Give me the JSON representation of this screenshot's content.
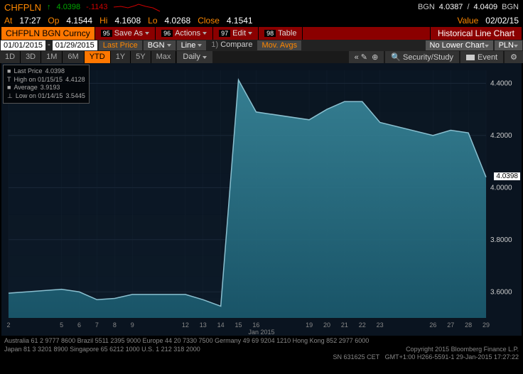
{
  "quote": {
    "symbol": "CHFPLN",
    "arrow": "↑",
    "last": "4.0398",
    "change": "-.1143",
    "bgn": "BGN",
    "bid": "4.0387",
    "ask": "4.0409"
  },
  "row2": {
    "at_lbl": "At",
    "at": "17:27",
    "op_lbl": "Op",
    "op": "4.1544",
    "hi_lbl": "Hi",
    "hi": "4.1608",
    "lo_lbl": "Lo",
    "lo": "4.0268",
    "close_lbl": "Close",
    "close": "4.1541",
    "value_lbl": "Value",
    "value": "02/02/15"
  },
  "row3": {
    "ticker": "CHFPLN BGN Curncy",
    "tabs": [
      {
        "n": "95",
        "t": "Save As"
      },
      {
        "n": "96",
        "t": "Actions"
      },
      {
        "n": "97",
        "t": "Edit"
      },
      {
        "n": "98",
        "t": "Table"
      }
    ],
    "title": "Historical Line Chart"
  },
  "row4": {
    "d1": "01/01/2015",
    "d2": "01/29/2015",
    "lp": "Last Price",
    "src": "BGN",
    "ct": "Line",
    "cmp": "Compare",
    "ma": "Mov. Avgs",
    "nlc": "No Lower Chart",
    "ccy": "PLN"
  },
  "row5": {
    "ranges": [
      "1D",
      "3D",
      "1M",
      "6M",
      "YTD",
      "1Y",
      "5Y",
      "Max"
    ],
    "active": "YTD",
    "freq": "Daily",
    "sec": "Security/Study",
    "evt": "Event"
  },
  "legend": {
    "l1": "Last Price",
    "v1": "4.0398",
    "l2": "High on 01/15/15",
    "v2": "4.4128",
    "l3": "Average",
    "v3": "3.9193",
    "l4": "Low on 01/14/15",
    "v4": "3.5445"
  },
  "chart": {
    "ylim": [
      3.5,
      4.45
    ],
    "yticks": [
      "3.6000",
      "3.8000",
      "4.0000",
      "4.2000",
      "4.4000"
    ],
    "ytick_vals": [
      3.6,
      3.8,
      4.0,
      4.2,
      4.4
    ],
    "price_tag": "4.0398",
    "price_tag_val": 4.0398,
    "xlabel": "Jan 2015",
    "xticks": [
      "2",
      "5",
      "6",
      "7",
      "8",
      "9",
      "12",
      "13",
      "14",
      "15",
      "16",
      "19",
      "20",
      "21",
      "22",
      "23",
      "26",
      "27",
      "28",
      "29"
    ],
    "fill_color": "#1a5a6e",
    "fill_top": "#3a8a9e",
    "line_color": "#8ac0d0",
    "grid_color": "#1a2838",
    "bg": "#0a1420",
    "data": [
      {
        "x": 2,
        "y": 3.595
      },
      {
        "x": 5,
        "y": 3.61
      },
      {
        "x": 6,
        "y": 3.6
      },
      {
        "x": 7,
        "y": 3.57
      },
      {
        "x": 8,
        "y": 3.575
      },
      {
        "x": 9,
        "y": 3.59
      },
      {
        "x": 12,
        "y": 3.59
      },
      {
        "x": 13,
        "y": 3.57
      },
      {
        "x": 14,
        "y": 3.545
      },
      {
        "x": 15,
        "y": 4.413
      },
      {
        "x": 16,
        "y": 4.29
      },
      {
        "x": 19,
        "y": 4.26
      },
      {
        "x": 20,
        "y": 4.3
      },
      {
        "x": 21,
        "y": 4.33
      },
      {
        "x": 22,
        "y": 4.33
      },
      {
        "x": 23,
        "y": 4.25
      },
      {
        "x": 26,
        "y": 4.2
      },
      {
        "x": 27,
        "y": 4.22
      },
      {
        "x": 28,
        "y": 4.21
      },
      {
        "x": 29,
        "y": 4.04
      }
    ]
  },
  "footer": {
    "l1": "Australia 61 2 9777 8600 Brazil 5511 2395 9000 Europe 44 20 7330 7500 Germany 49 69 9204 1210 Hong Kong 852 2977 6000",
    "l2a": "Japan 81 3 3201 8900        Singapore 65 6212 1000        U.S. 1 212 318 2000",
    "l2b": "Copyright 2015 Bloomberg Finance L.P.",
    "l3a": "SN 631625 CET",
    "l3b": "GMT+1:00 H266-5591-1 29-Jan-2015 17:27:22"
  }
}
